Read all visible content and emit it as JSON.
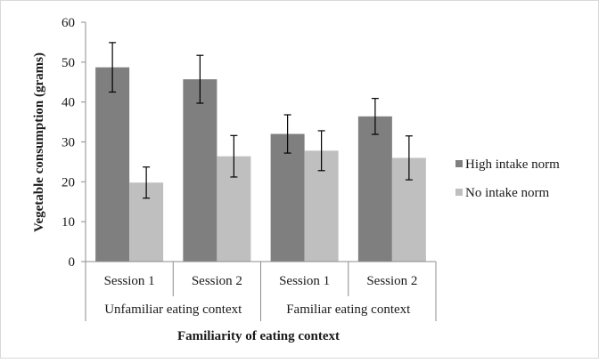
{
  "chart_data": {
    "type": "bar",
    "categories": [
      "Session 1",
      "Session 2",
      "Session 1",
      "Session 2"
    ],
    "groups": [
      {
        "label": "Unfamiliar eating context",
        "categories": [
          0,
          1
        ]
      },
      {
        "label": "Familiar eating context",
        "categories": [
          2,
          3
        ]
      }
    ],
    "series": [
      {
        "name": "High intake norm",
        "values": [
          48.7,
          45.7,
          32.0,
          36.4
        ],
        "errors": [
          6.2,
          6.0,
          4.8,
          4.5
        ],
        "color": "#7f7f7f"
      },
      {
        "name": "No intake norm",
        "values": [
          19.8,
          26.4,
          27.8,
          26.0
        ],
        "errors": [
          3.9,
          5.2,
          5.0,
          5.5
        ],
        "color": "#bfbfbf"
      }
    ],
    "xlabel": "Familiarity of eating context",
    "ylabel": "Vegetable consumption (grams)",
    "ylim": [
      0,
      60
    ],
    "yticks": [
      0,
      10,
      20,
      30,
      40,
      50,
      60
    ],
    "grid": false,
    "legend": "right"
  }
}
